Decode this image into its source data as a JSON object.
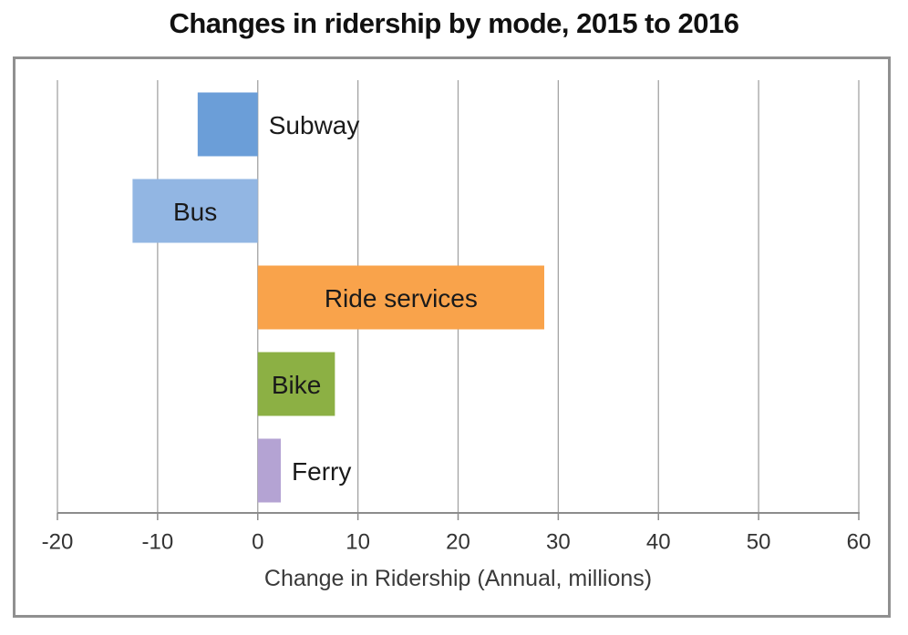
{
  "chart_data": {
    "type": "bar",
    "orientation": "horizontal",
    "title": "Changes in ridership by mode, 2015 to 2016",
    "xlabel": "Change in Ridership (Annual, millions)",
    "ylabel": "",
    "categories": [
      "Subway",
      "Bus",
      "Ride services",
      "Bike",
      "Ferry"
    ],
    "values": [
      -6,
      -12.5,
      28.6,
      7.7,
      2.3
    ],
    "bar_colors": [
      "#6b9ed8",
      "#92b6e3",
      "#f9a34b",
      "#8cb044",
      "#b4a3d3"
    ],
    "label_placement": [
      "outside",
      "inside",
      "inside",
      "inside",
      "outside"
    ],
    "xlim": [
      -20,
      60
    ],
    "xticks": [
      -20,
      -10,
      0,
      10,
      20,
      30,
      40,
      50,
      60
    ],
    "grid": true,
    "legend": "none",
    "colors": {
      "gridline": "#a3a3a3",
      "axis_line": "#8c8c8c",
      "tick_label": "#333333",
      "axis_title": "#3a3a3a",
      "bar_label": "#1a1a1a",
      "border": "#909090",
      "title_text": "#111111"
    }
  }
}
